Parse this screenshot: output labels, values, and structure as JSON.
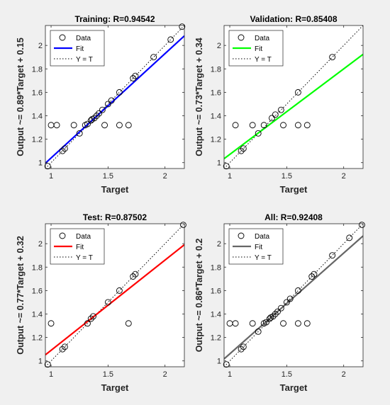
{
  "figure": {
    "background": "#f0f0f0",
    "axes_background": "#ffffff"
  },
  "chart_data": [
    {
      "type": "scatter",
      "title": "Training: R=0.94542",
      "xlabel": "Target",
      "ylabel": "Output ~= 0.89*Target + 0.15",
      "xlim": [
        0.95,
        2.17
      ],
      "ylim": [
        0.95,
        2.17
      ],
      "xticks": [
        1,
        1.5,
        2
      ],
      "yticks": [
        1,
        1.2,
        1.4,
        1.6,
        1.8,
        2
      ],
      "grid": false,
      "legend": {
        "placement": "top-left",
        "entries": [
          "Data",
          "Fit",
          "Y = T"
        ]
      },
      "fit": {
        "slope": 0.89,
        "intercept": 0.15,
        "color": "#0000ff"
      },
      "identity_line": {
        "color": "#000000",
        "style": "dotted"
      },
      "points": [
        {
          "x": 0.97,
          "y": 0.97
        },
        {
          "x": 1.0,
          "y": 1.32
        },
        {
          "x": 1.05,
          "y": 1.32
        },
        {
          "x": 1.1,
          "y": 1.1
        },
        {
          "x": 1.12,
          "y": 1.12
        },
        {
          "x": 1.2,
          "y": 1.32
        },
        {
          "x": 1.25,
          "y": 1.25
        },
        {
          "x": 1.3,
          "y": 1.32
        },
        {
          "x": 1.32,
          "y": 1.33
        },
        {
          "x": 1.35,
          "y": 1.36
        },
        {
          "x": 1.36,
          "y": 1.37
        },
        {
          "x": 1.38,
          "y": 1.38
        },
        {
          "x": 1.4,
          "y": 1.4
        },
        {
          "x": 1.42,
          "y": 1.42
        },
        {
          "x": 1.45,
          "y": 1.45
        },
        {
          "x": 1.47,
          "y": 1.32
        },
        {
          "x": 1.5,
          "y": 1.5
        },
        {
          "x": 1.53,
          "y": 1.53
        },
        {
          "x": 1.6,
          "y": 1.6
        },
        {
          "x": 1.6,
          "y": 1.32
        },
        {
          "x": 1.68,
          "y": 1.32
        },
        {
          "x": 1.72,
          "y": 1.72
        },
        {
          "x": 1.74,
          "y": 1.74
        },
        {
          "x": 1.9,
          "y": 1.9
        },
        {
          "x": 2.05,
          "y": 2.05
        },
        {
          "x": 2.15,
          "y": 2.16
        }
      ]
    },
    {
      "type": "scatter",
      "title": "Validation: R=0.85408",
      "xlabel": "Target",
      "ylabel": "Output ~= 0.73*Target + 0.34",
      "xlim": [
        0.95,
        2.17
      ],
      "ylim": [
        0.95,
        2.17
      ],
      "xticks": [
        1,
        1.5,
        2
      ],
      "yticks": [
        1,
        1.2,
        1.4,
        1.6,
        1.8,
        2
      ],
      "grid": false,
      "legend": {
        "placement": "top-left",
        "entries": [
          "Data",
          "Fit",
          "Y = T"
        ]
      },
      "fit": {
        "slope": 0.73,
        "intercept": 0.34,
        "color": "#00ff00"
      },
      "identity_line": {
        "color": "#000000",
        "style": "dotted"
      },
      "points": [
        {
          "x": 0.97,
          "y": 0.97
        },
        {
          "x": 1.05,
          "y": 1.32
        },
        {
          "x": 1.1,
          "y": 1.1
        },
        {
          "x": 1.12,
          "y": 1.12
        },
        {
          "x": 1.2,
          "y": 1.32
        },
        {
          "x": 1.25,
          "y": 1.25
        },
        {
          "x": 1.3,
          "y": 1.32
        },
        {
          "x": 1.37,
          "y": 1.38
        },
        {
          "x": 1.4,
          "y": 1.41
        },
        {
          "x": 1.45,
          "y": 1.45
        },
        {
          "x": 1.47,
          "y": 1.32
        },
        {
          "x": 1.6,
          "y": 1.6
        },
        {
          "x": 1.6,
          "y": 1.32
        },
        {
          "x": 1.68,
          "y": 1.32
        },
        {
          "x": 1.9,
          "y": 1.9
        }
      ]
    },
    {
      "type": "scatter",
      "title": "Test: R=0.87502",
      "xlabel": "Target",
      "ylabel": "Output ~= 0.77*Target + 0.32",
      "xlim": [
        0.95,
        2.17
      ],
      "ylim": [
        0.95,
        2.17
      ],
      "xticks": [
        1,
        1.5,
        2
      ],
      "yticks": [
        1,
        1.2,
        1.4,
        1.6,
        1.8,
        2
      ],
      "grid": false,
      "legend": {
        "placement": "top-left",
        "entries": [
          "Data",
          "Fit",
          "Y = T"
        ]
      },
      "fit": {
        "slope": 0.77,
        "intercept": 0.32,
        "color": "#ff0000"
      },
      "identity_line": {
        "color": "#000000",
        "style": "dotted"
      },
      "points": [
        {
          "x": 0.97,
          "y": 0.97
        },
        {
          "x": 1.0,
          "y": 1.32
        },
        {
          "x": 1.1,
          "y": 1.1
        },
        {
          "x": 1.12,
          "y": 1.12
        },
        {
          "x": 1.32,
          "y": 1.32
        },
        {
          "x": 1.35,
          "y": 1.36
        },
        {
          "x": 1.37,
          "y": 1.38
        },
        {
          "x": 1.5,
          "y": 1.5
        },
        {
          "x": 1.6,
          "y": 1.6
        },
        {
          "x": 1.68,
          "y": 1.32
        },
        {
          "x": 1.72,
          "y": 1.72
        },
        {
          "x": 1.74,
          "y": 1.74
        },
        {
          "x": 2.16,
          "y": 2.16
        }
      ]
    },
    {
      "type": "scatter",
      "title": "All: R=0.92408",
      "xlabel": "Target",
      "ylabel": "Output ~= 0.86*Target + 0.2",
      "xlim": [
        0.95,
        2.17
      ],
      "ylim": [
        0.95,
        2.17
      ],
      "xticks": [
        1,
        1.5,
        2
      ],
      "yticks": [
        1,
        1.2,
        1.4,
        1.6,
        1.8,
        2
      ],
      "grid": false,
      "legend": {
        "placement": "top-left",
        "entries": [
          "Data",
          "Fit",
          "Y = T"
        ]
      },
      "fit": {
        "slope": 0.86,
        "intercept": 0.2,
        "color": "#666666"
      },
      "identity_line": {
        "color": "#000000",
        "style": "dotted"
      },
      "points": [
        {
          "x": 0.97,
          "y": 0.97
        },
        {
          "x": 1.0,
          "y": 1.32
        },
        {
          "x": 1.05,
          "y": 1.32
        },
        {
          "x": 1.1,
          "y": 1.1
        },
        {
          "x": 1.12,
          "y": 1.12
        },
        {
          "x": 1.2,
          "y": 1.32
        },
        {
          "x": 1.25,
          "y": 1.25
        },
        {
          "x": 1.3,
          "y": 1.32
        },
        {
          "x": 1.32,
          "y": 1.33
        },
        {
          "x": 1.35,
          "y": 1.36
        },
        {
          "x": 1.36,
          "y": 1.37
        },
        {
          "x": 1.38,
          "y": 1.38
        },
        {
          "x": 1.4,
          "y": 1.4
        },
        {
          "x": 1.42,
          "y": 1.42
        },
        {
          "x": 1.45,
          "y": 1.45
        },
        {
          "x": 1.47,
          "y": 1.32
        },
        {
          "x": 1.5,
          "y": 1.5
        },
        {
          "x": 1.53,
          "y": 1.53
        },
        {
          "x": 1.6,
          "y": 1.6
        },
        {
          "x": 1.6,
          "y": 1.32
        },
        {
          "x": 1.68,
          "y": 1.32
        },
        {
          "x": 1.72,
          "y": 1.72
        },
        {
          "x": 1.74,
          "y": 1.74
        },
        {
          "x": 1.9,
          "y": 1.9
        },
        {
          "x": 2.05,
          "y": 2.05
        },
        {
          "x": 2.16,
          "y": 2.16
        }
      ]
    }
  ]
}
